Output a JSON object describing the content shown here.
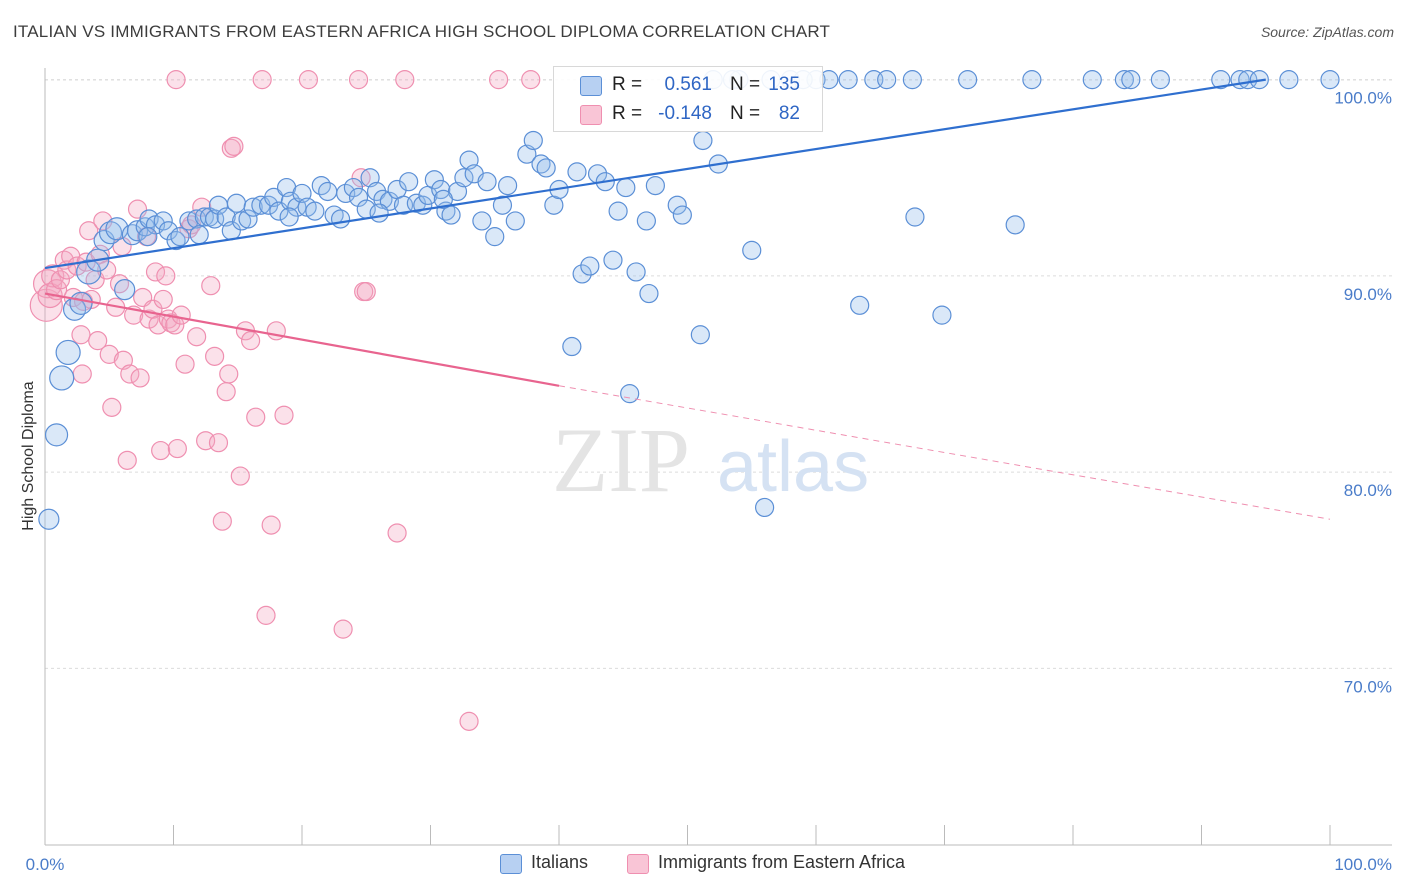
{
  "title": "ITALIAN VS IMMIGRANTS FROM EASTERN AFRICA HIGH SCHOOL DIPLOMA CORRELATION CHART",
  "source": "Source: ZipAtlas.com",
  "watermark": {
    "zip": "ZIP",
    "atlas": "atlas"
  },
  "colors": {
    "blue": "#5b8fd6",
    "blue_line": "#2f6fcf",
    "pink": "#ef8fb0",
    "pink_line": "#e8648f",
    "tick_text": "#4a7cc9",
    "grid": "#dddddd"
  },
  "legend_top": [
    {
      "r_label": "R =",
      "r_value": "0.561",
      "n_label": "N =",
      "n_value": "135",
      "swatch": "#b7d0f2",
      "border": "#5b8fd6"
    },
    {
      "r_label": "R =",
      "r_value": "-0.148",
      "n_label": "N =",
      "n_value": "82",
      "swatch": "#f9c5d6",
      "border": "#ef8fb0"
    }
  ],
  "legend_bottom": [
    {
      "label": "Italians",
      "swatch": "#b7d0f2",
      "border": "#5b8fd6"
    },
    {
      "label": "Immigrants from Eastern Africa",
      "swatch": "#f9c5d6",
      "border": "#ef8fb0"
    }
  ],
  "chart_data": {
    "type": "scatter",
    "title": "ITALIAN VS IMMIGRANTS FROM EASTERN AFRICA HIGH SCHOOL DIPLOMA CORRELATION CHART",
    "xlabel": "",
    "ylabel": "High School Diploma",
    "x_tick_labels": [
      "0.0%",
      "100.0%"
    ],
    "y_tick_labels": [
      "100.0%",
      "90.0%",
      "80.0%",
      "70.0%"
    ],
    "y_tick_values": [
      100,
      90,
      80,
      70
    ],
    "xlim": [
      0,
      100
    ],
    "ylim": [
      61,
      101
    ],
    "grid": true,
    "legend_position": "top-center",
    "series": [
      {
        "name": "Italians",
        "color": "#5b8fd6",
        "trend": {
          "x0": 0,
          "y0": 90.4,
          "x1": 95,
          "y1": 100.0,
          "dashed_from": null
        },
        "points": [
          [
            0.3,
            77.6,
            10
          ],
          [
            0.9,
            81.9,
            11
          ],
          [
            1.3,
            84.8,
            12
          ],
          [
            1.8,
            86.1,
            12
          ],
          [
            2.3,
            88.3,
            11
          ],
          [
            2.8,
            88.6,
            11
          ],
          [
            3.4,
            90.2,
            12
          ],
          [
            4.1,
            90.8,
            11
          ],
          [
            4.6,
            91.8,
            10
          ],
          [
            5.1,
            92.2,
            11
          ],
          [
            5.6,
            92.4,
            11
          ],
          [
            6.2,
            89.3,
            10
          ],
          [
            6.8,
            92.1,
            10
          ],
          [
            7.2,
            92.3,
            10
          ],
          [
            7.8,
            92.5,
            9
          ],
          [
            8.1,
            92.9,
            9
          ],
          [
            8.6,
            92.6,
            9
          ],
          [
            9.2,
            92.8,
            9
          ],
          [
            9.6,
            92.3,
            9
          ],
          [
            10.2,
            91.8,
            9
          ],
          [
            10.5,
            92.0,
            9
          ],
          [
            11.2,
            92.8,
            9
          ],
          [
            11.8,
            92.9,
            9
          ],
          [
            12.4,
            93.0,
            9
          ],
          [
            12.8,
            93.0,
            9
          ],
          [
            13.2,
            92.9,
            9
          ],
          [
            13.5,
            93.6,
            9
          ],
          [
            14.1,
            93.0,
            9
          ],
          [
            14.5,
            92.3,
            9
          ],
          [
            14.9,
            93.7,
            9
          ],
          [
            15.3,
            92.8,
            9
          ],
          [
            15.8,
            92.9,
            9
          ],
          [
            16.2,
            93.5,
            9
          ],
          [
            16.8,
            93.6,
            9
          ],
          [
            17.4,
            93.6,
            9
          ],
          [
            17.8,
            94.0,
            9
          ],
          [
            18.2,
            93.3,
            9
          ],
          [
            18.8,
            94.5,
            9
          ],
          [
            19.1,
            93.8,
            9
          ],
          [
            19.6,
            93.5,
            9
          ],
          [
            20.0,
            94.2,
            9
          ],
          [
            20.4,
            93.5,
            9
          ],
          [
            21.0,
            93.3,
            9
          ],
          [
            21.5,
            94.6,
            9
          ],
          [
            22.0,
            94.3,
            9
          ],
          [
            22.5,
            93.1,
            9
          ],
          [
            23.0,
            92.9,
            9
          ],
          [
            23.4,
            94.2,
            9
          ],
          [
            24.0,
            94.5,
            9
          ],
          [
            24.4,
            94.0,
            9
          ],
          [
            25.0,
            93.4,
            9
          ],
          [
            25.3,
            95.0,
            9
          ],
          [
            25.8,
            94.3,
            9
          ],
          [
            26.3,
            93.9,
            9
          ],
          [
            26.8,
            93.8,
            9
          ],
          [
            27.4,
            94.4,
            9
          ],
          [
            27.9,
            93.6,
            9
          ],
          [
            28.3,
            94.8,
            9
          ],
          [
            28.9,
            93.7,
            9
          ],
          [
            29.4,
            93.6,
            9
          ],
          [
            29.8,
            94.1,
            9
          ],
          [
            30.3,
            94.9,
            9
          ],
          [
            30.8,
            94.4,
            9
          ],
          [
            31.2,
            93.3,
            9
          ],
          [
            31.6,
            93.1,
            9
          ],
          [
            32.1,
            94.3,
            9
          ],
          [
            32.6,
            95.0,
            9
          ],
          [
            33.0,
            95.9,
            9
          ],
          [
            33.4,
            95.2,
            9
          ],
          [
            34.0,
            92.8,
            9
          ],
          [
            34.4,
            94.8,
            9
          ],
          [
            35.0,
            92.0,
            9
          ],
          [
            35.6,
            93.6,
            9
          ],
          [
            36.0,
            94.6,
            9
          ],
          [
            36.6,
            92.8,
            9
          ],
          [
            37.5,
            96.2,
            9
          ],
          [
            38.0,
            96.9,
            9
          ],
          [
            38.6,
            95.7,
            9
          ],
          [
            39.0,
            95.5,
            9
          ],
          [
            39.6,
            93.6,
            9
          ],
          [
            40.0,
            94.4,
            9
          ],
          [
            41.0,
            86.4,
            9
          ],
          [
            41.4,
            95.3,
            9
          ],
          [
            41.8,
            90.1,
            9
          ],
          [
            42.4,
            90.5,
            9
          ],
          [
            43.0,
            95.2,
            9
          ],
          [
            43.6,
            94.8,
            9
          ],
          [
            44.2,
            90.8,
            9
          ],
          [
            44.6,
            93.3,
            9
          ],
          [
            45.2,
            94.5,
            9
          ],
          [
            45.5,
            84.0,
            9
          ],
          [
            46.0,
            90.2,
            9
          ],
          [
            46.8,
            92.8,
            9
          ],
          [
            47.0,
            89.1,
            9
          ],
          [
            47.5,
            94.6,
            9
          ],
          [
            49.2,
            93.6,
            9
          ],
          [
            49.6,
            93.1,
            9
          ],
          [
            51.0,
            87.0,
            9
          ],
          [
            51.2,
            96.9,
            9
          ],
          [
            52.4,
            95.7,
            9
          ],
          [
            54.0,
            100.0,
            9
          ],
          [
            55.0,
            91.3,
            9
          ],
          [
            56.0,
            78.2,
            9
          ],
          [
            56.5,
            100.0,
            9
          ],
          [
            58.0,
            100.0,
            9
          ],
          [
            60.0,
            100.0,
            9
          ],
          [
            62.5,
            100.0,
            9
          ],
          [
            63.4,
            88.5,
            9
          ],
          [
            64.5,
            100.0,
            9
          ],
          [
            65.5,
            100.0,
            9
          ],
          [
            67.5,
            100.0,
            9
          ],
          [
            67.7,
            93.0,
            9
          ],
          [
            69.8,
            88.0,
            9
          ],
          [
            71.8,
            100.0,
            9
          ],
          [
            75.5,
            92.6,
            9
          ],
          [
            76.8,
            100.0,
            9
          ],
          [
            81.5,
            100.0,
            9
          ],
          [
            84.0,
            100.0,
            9
          ],
          [
            84.5,
            100.0,
            9
          ],
          [
            86.8,
            100.0,
            9
          ],
          [
            91.5,
            100.0,
            9
          ],
          [
            93.0,
            100.0,
            9
          ],
          [
            93.6,
            100.0,
            9
          ],
          [
            94.5,
            100.0,
            9
          ],
          [
            96.8,
            100.0,
            9
          ],
          [
            100.0,
            100.0,
            9
          ],
          [
            52.0,
            100.0,
            9
          ],
          [
            53.5,
            100.0,
            9
          ],
          [
            59.0,
            100.0,
            9
          ],
          [
            61.0,
            100.0,
            9
          ],
          [
            8.0,
            92.0,
            9
          ],
          [
            12.0,
            92.1,
            9
          ],
          [
            19.0,
            93.0,
            9
          ],
          [
            26.0,
            93.2,
            9
          ],
          [
            31.0,
            93.9,
            9
          ]
        ]
      },
      {
        "name": "Immigrants from Eastern Africa",
        "color": "#ef8fb0",
        "trend": {
          "x0": 0,
          "y0": 89.1,
          "x1": 40,
          "y1": 84.4,
          "dashed_to_x": 100,
          "dashed_to_y": 77.6
        },
        "points": [
          [
            0.1,
            88.5,
            16
          ],
          [
            0.2,
            89.6,
            14
          ],
          [
            0.4,
            89.0,
            12
          ],
          [
            0.6,
            90.0,
            11
          ],
          [
            0.9,
            89.3,
            10
          ],
          [
            1.2,
            89.8,
            9
          ],
          [
            1.5,
            90.8,
            9
          ],
          [
            1.7,
            90.3,
            9
          ],
          [
            2.0,
            91.0,
            9
          ],
          [
            2.2,
            88.9,
            9
          ],
          [
            2.5,
            90.5,
            9
          ],
          [
            2.8,
            87.0,
            9
          ],
          [
            3.0,
            88.7,
            9
          ],
          [
            3.2,
            90.7,
            9
          ],
          [
            3.4,
            92.3,
            9
          ],
          [
            3.6,
            88.8,
            9
          ],
          [
            3.9,
            89.8,
            9
          ],
          [
            4.1,
            86.7,
            9
          ],
          [
            4.3,
            91.1,
            9
          ],
          [
            4.5,
            92.8,
            9
          ],
          [
            4.8,
            90.3,
            9
          ],
          [
            5.0,
            86.0,
            9
          ],
          [
            5.2,
            83.3,
            9
          ],
          [
            5.5,
            88.4,
            9
          ],
          [
            5.8,
            89.6,
            9
          ],
          [
            6.1,
            85.7,
            9
          ],
          [
            6.4,
            80.6,
            9
          ],
          [
            6.6,
            85.0,
            9
          ],
          [
            6.9,
            88.0,
            9
          ],
          [
            7.2,
            93.4,
            9
          ],
          [
            7.4,
            84.8,
            9
          ],
          [
            7.6,
            88.9,
            9
          ],
          [
            7.9,
            92.0,
            9
          ],
          [
            8.1,
            87.8,
            9
          ],
          [
            8.4,
            88.3,
            9
          ],
          [
            8.6,
            90.2,
            9
          ],
          [
            8.8,
            87.5,
            9
          ],
          [
            9.0,
            81.1,
            9
          ],
          [
            9.2,
            88.8,
            9
          ],
          [
            9.4,
            90.0,
            9
          ],
          [
            9.6,
            87.8,
            9
          ],
          [
            9.8,
            87.6,
            9
          ],
          [
            10.1,
            87.5,
            9
          ],
          [
            10.3,
            81.2,
            9
          ],
          [
            10.6,
            88.0,
            9
          ],
          [
            10.9,
            85.5,
            9
          ],
          [
            11.2,
            92.4,
            9
          ],
          [
            11.4,
            92.6,
            9
          ],
          [
            11.8,
            86.9,
            9
          ],
          [
            12.2,
            93.5,
            9
          ],
          [
            12.5,
            81.6,
            9
          ],
          [
            12.9,
            89.5,
            9
          ],
          [
            13.2,
            85.9,
            9
          ],
          [
            13.5,
            81.5,
            9
          ],
          [
            13.8,
            77.5,
            9
          ],
          [
            14.1,
            84.1,
            9
          ],
          [
            14.3,
            85.0,
            9
          ],
          [
            14.5,
            96.5,
            9
          ],
          [
            14.7,
            96.6,
            9
          ],
          [
            15.2,
            79.8,
            9
          ],
          [
            15.6,
            87.2,
            9
          ],
          [
            16.0,
            86.7,
            9
          ],
          [
            16.4,
            82.8,
            9
          ],
          [
            16.9,
            100.0,
            9
          ],
          [
            17.2,
            72.7,
            9
          ],
          [
            17.6,
            77.3,
            9
          ],
          [
            18.0,
            87.2,
            9
          ],
          [
            18.6,
            82.9,
            9
          ],
          [
            20.5,
            100.0,
            9
          ],
          [
            23.2,
            72.0,
            9
          ],
          [
            24.4,
            100.0,
            9
          ],
          [
            24.6,
            95.0,
            9
          ],
          [
            24.8,
            89.2,
            9
          ],
          [
            25.0,
            89.2,
            9
          ],
          [
            27.4,
            76.9,
            9
          ],
          [
            28.0,
            100.0,
            9
          ],
          [
            35.3,
            100.0,
            9
          ],
          [
            37.8,
            100.0,
            9
          ],
          [
            33.0,
            67.3,
            9
          ],
          [
            10.2,
            100.0,
            9
          ],
          [
            2.9,
            85.0,
            9
          ],
          [
            6.0,
            91.5,
            9
          ]
        ]
      }
    ]
  }
}
